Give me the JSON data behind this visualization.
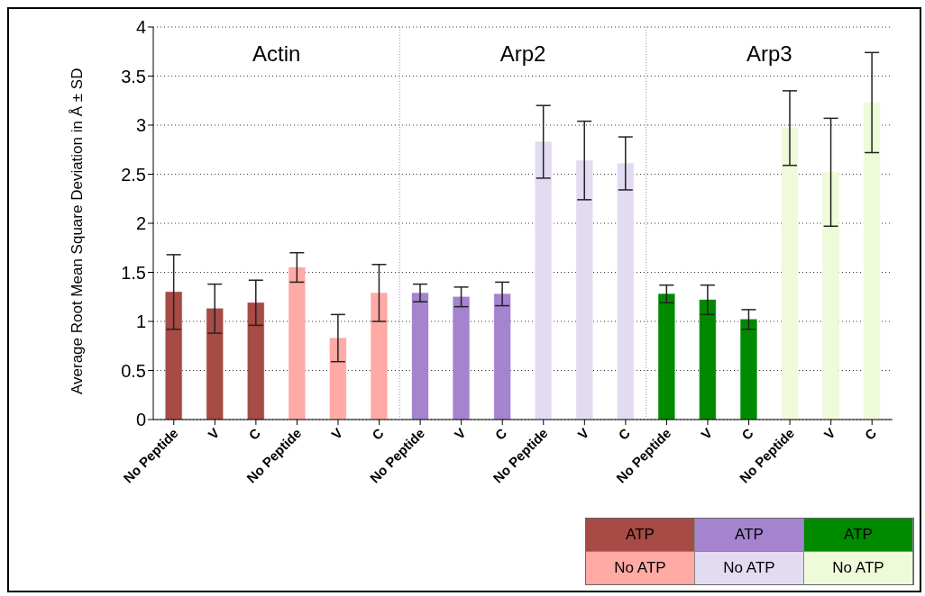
{
  "chart_data": {
    "type": "bar",
    "ylabel": "Average Root Mean Square Deviation in Å ± SD",
    "categories": [
      "No Peptide",
      "V",
      "C",
      "No Peptide",
      "V",
      "C",
      "No Peptide",
      "V",
      "C",
      "No Peptide",
      "V",
      "C",
      "No Peptide",
      "V",
      "C",
      "No Peptide",
      "V",
      "C"
    ],
    "stacked": true,
    "series": [
      {
        "name": "ATP",
        "color": "#a64b45",
        "values": [
          1.3,
          1.13,
          1.19,
          null,
          null,
          null,
          null,
          null,
          null,
          null,
          null,
          null,
          null,
          null,
          null,
          null,
          null,
          null
        ],
        "errors": [
          0.38,
          0.25,
          0.23,
          null,
          null,
          null,
          null,
          null,
          null,
          null,
          null,
          null,
          null,
          null,
          null,
          null,
          null,
          null
        ]
      },
      {
        "name": "No ATP",
        "color": "#ffaaa5",
        "values": [
          null,
          null,
          null,
          1.55,
          0.83,
          1.29,
          null,
          null,
          null,
          null,
          null,
          null,
          null,
          null,
          null,
          null,
          null,
          null
        ],
        "errors": [
          null,
          null,
          null,
          0.15,
          0.24,
          0.29,
          null,
          null,
          null,
          null,
          null,
          null,
          null,
          null,
          null,
          null,
          null,
          null
        ]
      },
      {
        "name": "ATP",
        "color": "#a583cf",
        "values": [
          null,
          null,
          null,
          null,
          null,
          null,
          1.29,
          1.25,
          1.28,
          null,
          null,
          null,
          null,
          null,
          null,
          null,
          null,
          null
        ],
        "errors": [
          null,
          null,
          null,
          null,
          null,
          null,
          0.09,
          0.1,
          0.12,
          null,
          null,
          null,
          null,
          null,
          null,
          null,
          null,
          null
        ]
      },
      {
        "name": "No ATP",
        "color": "#e3dbf2",
        "values": [
          null,
          null,
          null,
          null,
          null,
          null,
          null,
          null,
          null,
          2.83,
          2.64,
          2.61,
          null,
          null,
          null,
          null,
          null,
          null
        ],
        "errors": [
          null,
          null,
          null,
          null,
          null,
          null,
          null,
          null,
          null,
          0.37,
          0.4,
          0.27,
          null,
          null,
          null,
          null,
          null,
          null
        ]
      },
      {
        "name": "ATP",
        "color": "#008a00",
        "values": [
          null,
          null,
          null,
          null,
          null,
          null,
          null,
          null,
          null,
          null,
          null,
          null,
          1.28,
          1.22,
          1.02,
          null,
          null,
          null
        ],
        "errors": [
          null,
          null,
          null,
          null,
          null,
          null,
          null,
          null,
          null,
          null,
          null,
          null,
          0.09,
          0.15,
          0.1,
          null,
          null,
          null
        ]
      },
      {
        "name": "No ATP",
        "color": "#eefad8",
        "values": [
          null,
          null,
          null,
          null,
          null,
          null,
          null,
          null,
          null,
          null,
          null,
          null,
          null,
          null,
          null,
          2.97,
          2.52,
          3.23
        ],
        "errors": [
          null,
          null,
          null,
          null,
          null,
          null,
          null,
          null,
          null,
          null,
          null,
          null,
          null,
          null,
          null,
          0.38,
          0.55,
          0.51
        ]
      }
    ],
    "annotations": [
      "Actin",
      "Arp2",
      "Arp3"
    ],
    "ylim": [
      0,
      4
    ],
    "yticks": [
      0,
      0.5,
      1,
      1.5,
      2,
      2.5,
      3,
      3.5,
      4
    ],
    "grid": "y",
    "legend": "bottom right"
  }
}
